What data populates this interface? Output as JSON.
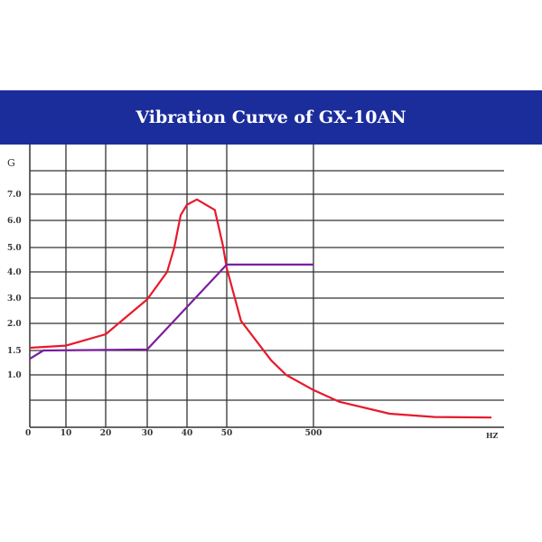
{
  "chart_data": {
    "type": "line",
    "title": "Vibration Curve of GX-10AN",
    "ylabel": "G",
    "xlabel": "HZ",
    "x_ticks": [
      {
        "value": 0,
        "label": "0"
      },
      {
        "value": 10,
        "label": "10"
      },
      {
        "value": 20,
        "label": "20"
      },
      {
        "value": 30,
        "label": "30"
      },
      {
        "value": 40,
        "label": "40"
      },
      {
        "value": 50,
        "label": "50"
      },
      {
        "value": 500,
        "label": "500"
      }
    ],
    "y_ticks": [
      {
        "value": 1.0,
        "label": "1.0"
      },
      {
        "value": 1.5,
        "label": "1.5"
      },
      {
        "value": 2.0,
        "label": "2.0"
      },
      {
        "value": 3.0,
        "label": "3.0"
      },
      {
        "value": 4.0,
        "label": "4.0"
      },
      {
        "value": 5.0,
        "label": "5.0"
      },
      {
        "value": 6.0,
        "label": "6.0"
      },
      {
        "value": 7.0,
        "label": "7.0"
      }
    ],
    "x_scale": "piecewise (non-uniform)",
    "grid": true,
    "series": [
      {
        "name": "red",
        "color": "#e8192c",
        "points": [
          [
            0,
            1.55
          ],
          [
            10,
            1.59
          ],
          [
            20,
            1.8
          ],
          [
            30,
            2.95
          ],
          [
            35,
            4.0
          ],
          [
            36.8,
            5.0
          ],
          [
            38.4,
            6.2
          ],
          [
            40,
            6.6
          ],
          [
            42.5,
            6.8
          ],
          [
            47,
            6.4
          ],
          [
            49,
            5.1
          ],
          [
            50,
            4.15
          ],
          [
            124,
            2.1
          ],
          [
            280,
            1.3
          ],
          [
            358,
            1.0
          ],
          [
            500,
            0.7
          ],
          [
            568,
            0.47
          ],
          [
            700,
            0.25
          ],
          [
            818,
            0.19
          ],
          [
            967,
            0.18
          ]
        ]
      },
      {
        "name": "purple",
        "color": "#7a1f9e",
        "points": [
          [
            0,
            1.33
          ],
          [
            3.75,
            1.5
          ],
          [
            30,
            1.52
          ],
          [
            50,
            4.3
          ],
          [
            500,
            4.3
          ]
        ]
      }
    ]
  }
}
